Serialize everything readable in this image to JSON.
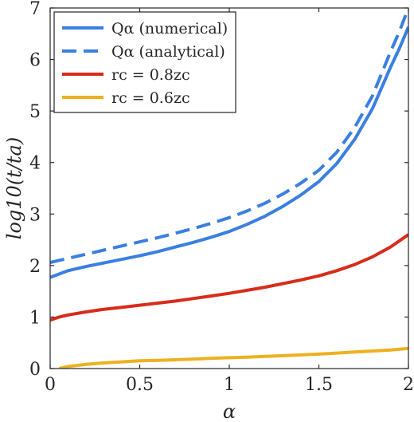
{
  "chart_data": {
    "type": "line",
    "title": "",
    "xlabel": "α",
    "ylabel": "log10(t/ta)",
    "xlim": [
      0,
      2
    ],
    "ylim": [
      0,
      7
    ],
    "xticks": [
      "0",
      "0.5",
      "1",
      "1.5",
      "2"
    ],
    "yticks": [
      "0",
      "1",
      "2",
      "3",
      "4",
      "5",
      "6",
      "7"
    ],
    "grid": false,
    "legend_position": "top-left",
    "series": [
      {
        "name": "Qα (numerical)",
        "color": "#3b7fe0",
        "style": "solid",
        "x": [
          0,
          0.1,
          0.2,
          0.3,
          0.4,
          0.5,
          0.6,
          0.7,
          0.8,
          0.9,
          1.0,
          1.1,
          1.2,
          1.3,
          1.4,
          1.5,
          1.6,
          1.7,
          1.8,
          1.9,
          1.95,
          2.0
        ],
        "y": [
          1.77,
          1.9,
          1.98,
          2.05,
          2.12,
          2.19,
          2.27,
          2.36,
          2.45,
          2.55,
          2.66,
          2.8,
          2.96,
          3.15,
          3.37,
          3.63,
          3.98,
          4.45,
          5.05,
          5.85,
          6.22,
          6.63
        ]
      },
      {
        "name": "Qα (analytical)",
        "color": "#3b7fe0",
        "style": "dashed",
        "x": [
          0,
          0.1,
          0.2,
          0.3,
          0.4,
          0.5,
          0.6,
          0.7,
          0.8,
          0.9,
          1.0,
          1.1,
          1.2,
          1.3,
          1.4,
          1.5,
          1.6,
          1.7,
          1.8,
          1.9,
          1.95,
          2.0
        ],
        "y": [
          2.06,
          2.14,
          2.22,
          2.3,
          2.38,
          2.46,
          2.54,
          2.63,
          2.72,
          2.82,
          2.93,
          3.06,
          3.21,
          3.39,
          3.6,
          3.85,
          4.2,
          4.68,
          5.3,
          6.15,
          6.55,
          7.0
        ]
      },
      {
        "name": "rc = 0.8zc",
        "color": "#d82c1a",
        "style": "solid",
        "x": [
          0,
          0.05,
          0.1,
          0.2,
          0.3,
          0.4,
          0.5,
          0.6,
          0.7,
          0.8,
          0.9,
          1.0,
          1.1,
          1.2,
          1.3,
          1.4,
          1.5,
          1.6,
          1.7,
          1.8,
          1.9,
          2.0
        ],
        "y": [
          0.94,
          1.0,
          1.04,
          1.1,
          1.15,
          1.19,
          1.23,
          1.27,
          1.31,
          1.36,
          1.41,
          1.46,
          1.52,
          1.58,
          1.65,
          1.72,
          1.8,
          1.9,
          2.02,
          2.17,
          2.36,
          2.6
        ]
      },
      {
        "name": "rc = 0.6zc",
        "color": "#edb120",
        "style": "solid",
        "x": [
          0.05,
          0.1,
          0.2,
          0.3,
          0.4,
          0.5,
          0.6,
          0.7,
          0.8,
          0.9,
          1.0,
          1.1,
          1.2,
          1.3,
          1.4,
          1.5,
          1.6,
          1.7,
          1.8,
          1.9,
          2.0
        ],
        "y": [
          0.0,
          0.04,
          0.08,
          0.11,
          0.13,
          0.15,
          0.16,
          0.17,
          0.185,
          0.2,
          0.21,
          0.22,
          0.235,
          0.25,
          0.265,
          0.28,
          0.3,
          0.32,
          0.34,
          0.36,
          0.39
        ]
      }
    ]
  }
}
